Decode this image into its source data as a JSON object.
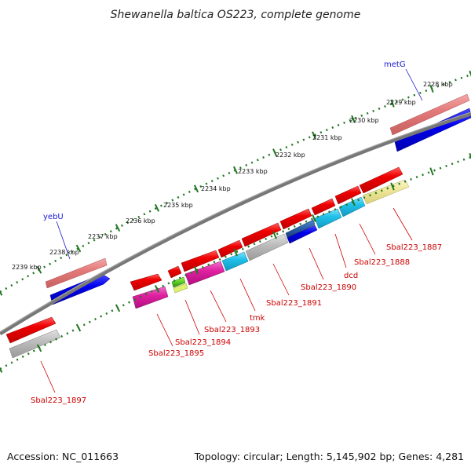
{
  "title": "Shewanella baltica OS223, complete genome",
  "footer": {
    "accession": "Accession: NC_011663",
    "summary": "Topology: circular; Length: 5,145,902 bp; Genes: 4,281"
  },
  "scale_labels": [
    "2228 kbp",
    "2229 kbp",
    "2230 kbp",
    "2231 kbp",
    "2232 kbp",
    "2233 kbp",
    "2234 kbp",
    "2235 kbp",
    "2236 kbp",
    "2237 kbp",
    "2238 kbp",
    "2239 kbp"
  ],
  "gene_labels": {
    "metG": "metG",
    "yebU": "yebU",
    "sbal223_1887": "Sbal223_1887",
    "sbal223_1888": "Sbal223_1888",
    "dcd": "dcd",
    "sbal223_1890": "Sbal223_1890",
    "sbal223_1891": "Sbal223_1891",
    "tmk": "tmk",
    "sbal223_1893": "Sbal223_1893",
    "sbal223_1894": "Sbal223_1894",
    "sbal223_1895": "Sbal223_1895",
    "sbal223_1897": "Sbal223_1897"
  },
  "colors": {
    "forward_cds": "#ee0000",
    "backbone": "#777777",
    "ticks": "#227722",
    "label_red": "#cc0000",
    "label_blue": "#1a1ad0",
    "pink_feature": "#e68080",
    "blue_feature": "#0000ee",
    "grey_feature": "#bbbbbb",
    "magenta_feature": "#e020a0",
    "cyan_feature": "#20c0e8",
    "yellow_feature": "#f0e89a",
    "green_feature": "#55cc22"
  }
}
